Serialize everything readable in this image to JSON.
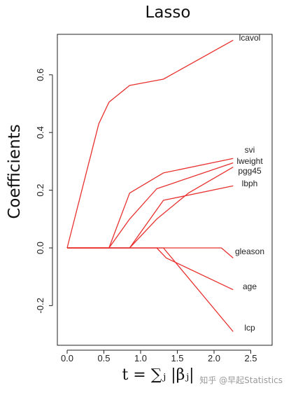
{
  "chart_data": {
    "type": "line",
    "title": "Lasso",
    "xlabel": "t = ∑ⱼ |βⱼ|",
    "ylabel": "Coefficients",
    "xlim": [
      -0.1,
      2.75
    ],
    "ylim": [
      -0.34,
      0.75
    ],
    "xticks": [
      "0.0",
      "0.5",
      "1.0",
      "1.5",
      "2.0",
      "2.5"
    ],
    "yticks": [
      "-0.2",
      "0.0",
      "0.2",
      "0.4",
      "0.6"
    ],
    "grid": false,
    "line_color": "#e8302e",
    "series": [
      {
        "name": "lcavol",
        "x": [
          0,
          0.43,
          0.57,
          0.85,
          1.31,
          2.26
        ],
        "y": [
          0,
          0.43,
          0.505,
          0.563,
          0.585,
          0.72
        ]
      },
      {
        "name": "svi",
        "x": [
          0,
          0.57,
          0.85,
          1.31,
          2.26
        ],
        "y": [
          0,
          0,
          0.19,
          0.26,
          0.31
        ]
      },
      {
        "name": "lweight",
        "x": [
          0,
          0.57,
          0.85,
          1.22,
          2.26
        ],
        "y": [
          0,
          0,
          0.1,
          0.205,
          0.295
        ]
      },
      {
        "name": "pgg45",
        "x": [
          0,
          0.85,
          1.22,
          1.65,
          2.26
        ],
        "y": [
          0,
          0,
          0.1,
          0.19,
          0.28
        ]
      },
      {
        "name": "lbph",
        "x": [
          0,
          0.85,
          1.31,
          2.26
        ],
        "y": [
          0,
          0,
          0.165,
          0.215
        ]
      },
      {
        "name": "gleason",
        "x": [
          0,
          1.3,
          2.1,
          2.26
        ],
        "y": [
          0,
          0,
          0,
          -0.035
        ]
      },
      {
        "name": "age",
        "x": [
          0,
          1.22,
          1.35,
          2.26
        ],
        "y": [
          0,
          0,
          -0.035,
          -0.145
        ]
      },
      {
        "name": "lcp",
        "x": [
          0,
          1.31,
          2.26
        ],
        "y": [
          0,
          0,
          -0.29
        ]
      }
    ]
  },
  "watermark": "知乎 @早起Statistics"
}
